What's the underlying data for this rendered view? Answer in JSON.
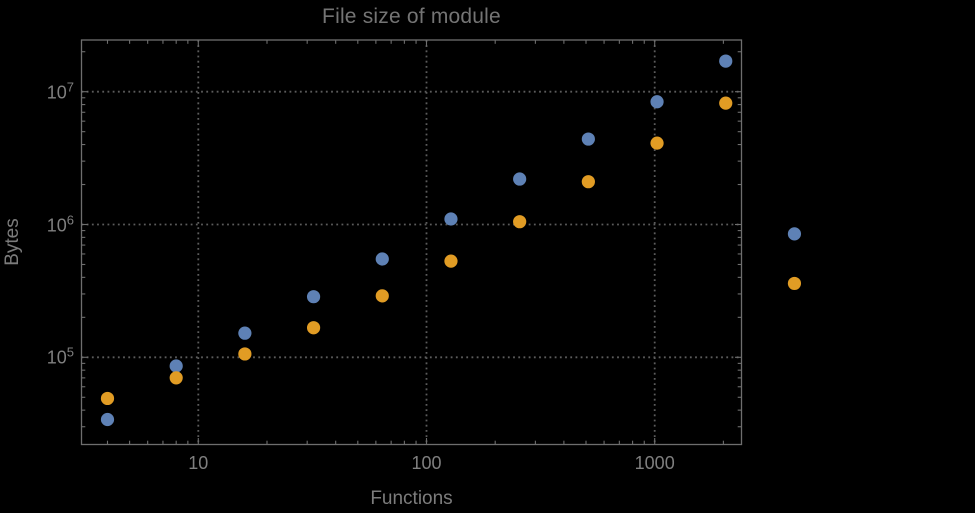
{
  "chart_data": {
    "type": "scatter",
    "title": "File size of module",
    "xlabel": "Functions",
    "ylabel": "Bytes",
    "x_scale": "log10",
    "y_scale": "log10",
    "xlim": [
      3.1,
      2400
    ],
    "ylim": [
      22000,
      24500000
    ],
    "grid": "dotted gray lines at powers of 10, both axes",
    "legend_position": "none",
    "x": [
      4,
      8,
      16,
      32,
      64,
      128,
      256,
      512,
      1024,
      2048,
      4096
    ],
    "series": [
      {
        "name": "series-1-blue",
        "color": "#5E81B5",
        "values": [
          34000,
          86000,
          152000,
          286000,
          550000,
          1100000,
          2200000,
          4400000,
          8400000,
          17000000,
          850000
        ]
      },
      {
        "name": "series-2-orange",
        "color": "#E19C24",
        "values": [
          49000,
          70000,
          106000,
          167000,
          290000,
          530000,
          1050000,
          2100000,
          4100000,
          8200000,
          360000
        ]
      }
    ],
    "x_ticks": [
      {
        "value": 10,
        "label": "10"
      },
      {
        "value": 100,
        "label": "100"
      },
      {
        "value": 1000,
        "label": "1000"
      }
    ],
    "y_ticks": [
      {
        "value": 100000,
        "base": "10",
        "exp": "5"
      },
      {
        "value": 1000000,
        "base": "10",
        "exp": "6"
      },
      {
        "value": 10000000,
        "base": "10",
        "exp": "7"
      }
    ],
    "note": "last x pair (4096) is drawn outside the right edge of the plot frame"
  },
  "colors": {
    "background": "#000000",
    "frame": "#6e6e6e",
    "gridline": "#5c5c5c",
    "tick": "#6e6e6e",
    "tick_label": "#7f7f7f",
    "title": "#747474",
    "axis_label": "#7c7c7c",
    "point_blue": "#5E81B5",
    "point_orange": "#E19C24"
  }
}
